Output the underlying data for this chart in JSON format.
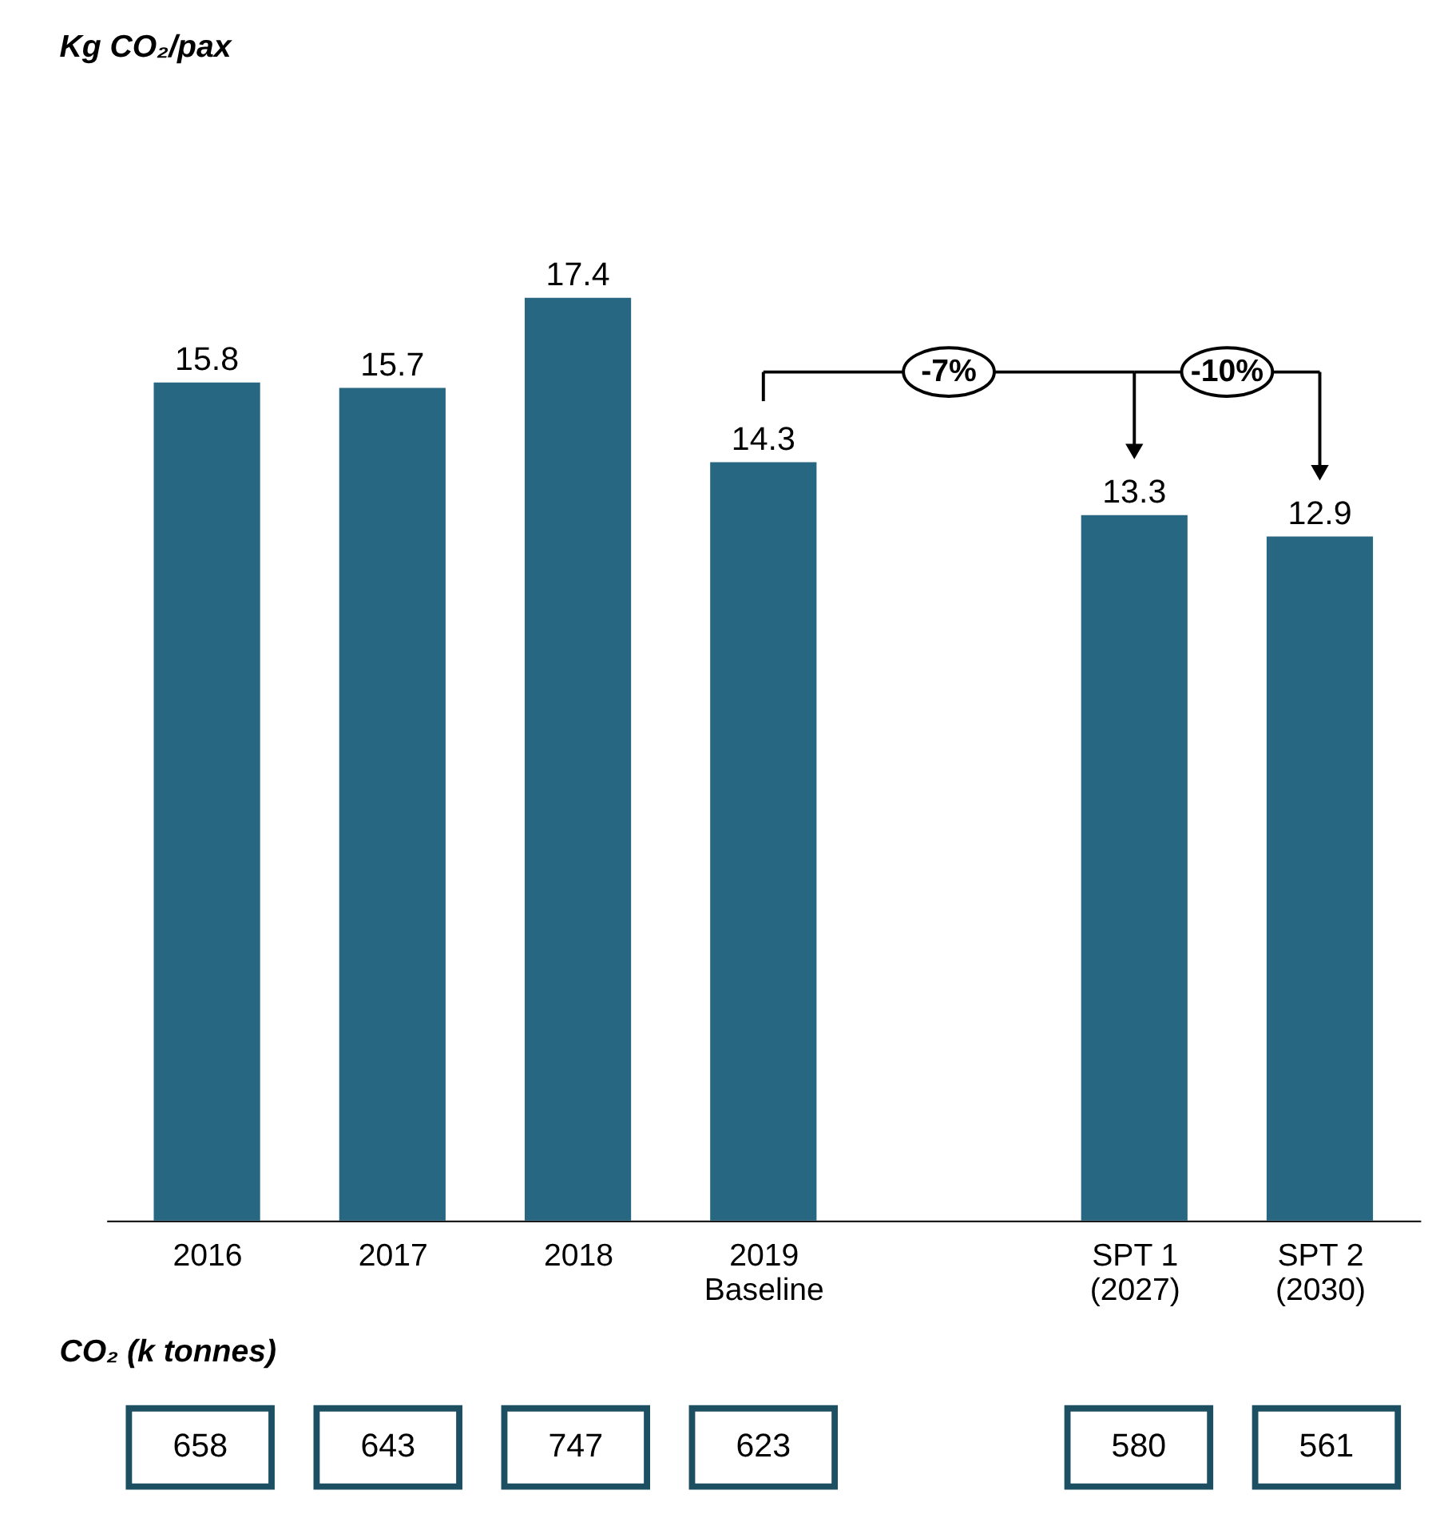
{
  "chart_data": [
    {
      "type": "bar",
      "ylabel": "Kg CO₂/pax",
      "categories": [
        "2016",
        "2017",
        "2018",
        "2019\nBaseline",
        null,
        "SPT 1\n(2027)",
        "SPT 2\n(2030)"
      ],
      "values": [
        15.8,
        15.7,
        17.4,
        14.3,
        null,
        13.3,
        12.9
      ],
      "color": "#276782",
      "tick_labels": "x",
      "data_labels": true,
      "annotations": [
        "-7%",
        "-10%"
      ]
    },
    {
      "type": "other",
      "title": "CO₂ (k tonnes)",
      "values": [
        658,
        643,
        747,
        623,
        null,
        580,
        561
      ],
      "color": "#1d4f63",
      "data_labels": true
    }
  ]
}
